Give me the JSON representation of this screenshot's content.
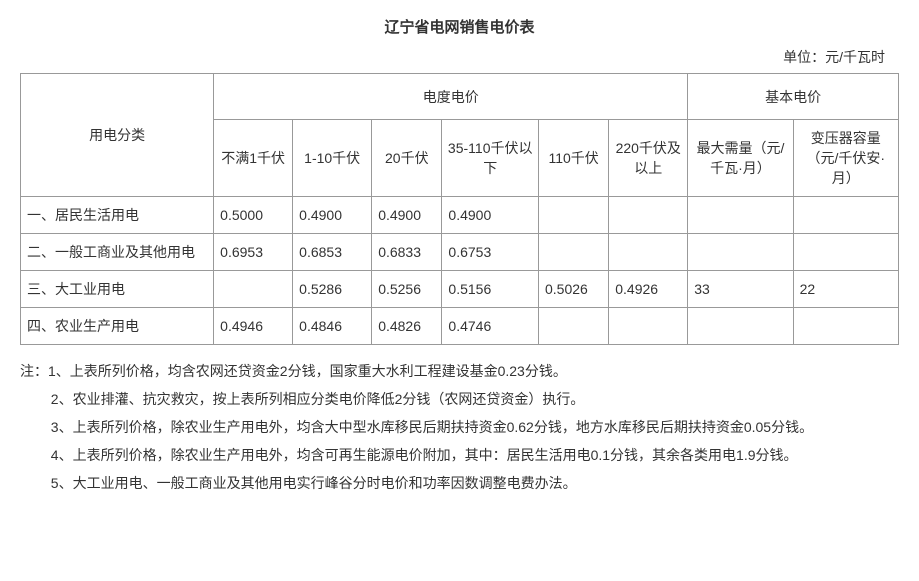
{
  "title": "辽宁省电网销售电价表",
  "unit_label": "单位：元/千瓦时",
  "header": {
    "category": "用电分类",
    "meter_group": "电度电价",
    "basic_group": "基本电价",
    "cols": {
      "c1": "不满1千伏",
      "c2": "1-10千伏",
      "c3": "20千伏",
      "c4": "35-110千伏以下",
      "c5": "110千伏",
      "c6": "220千伏及以上",
      "b1": "最大需量（元/千瓦·月）",
      "b2": "变压器容量（元/千伏安·月）"
    }
  },
  "rows": [
    {
      "cat": "一、居民生活用电",
      "c1": "0.5000",
      "c2": "0.4900",
      "c3": "0.4900",
      "c4": "0.4900",
      "c5": "",
      "c6": "",
      "b1": "",
      "b2": ""
    },
    {
      "cat": "二、一般工商业及其他用电",
      "c1": "0.6953",
      "c2": "0.6853",
      "c3": "0.6833",
      "c4": "0.6753",
      "c5": "",
      "c6": "",
      "b1": "",
      "b2": ""
    },
    {
      "cat": "三、大工业用电",
      "c1": "",
      "c2": "0.5286",
      "c3": "0.5256",
      "c4": "0.5156",
      "c5": "0.5026",
      "c6": "0.4926",
      "b1": "33",
      "b2": "22"
    },
    {
      "cat": "四、农业生产用电",
      "c1": "0.4946",
      "c2": "0.4846",
      "c3": "0.4826",
      "c4": "0.4746",
      "c5": "",
      "c6": "",
      "b1": "",
      "b2": ""
    }
  ],
  "notes_prefix": "注：",
  "notes": [
    "1、上表所列价格，均含农网还贷资金2分钱，国家重大水利工程建设基金0.23分钱。",
    "2、农业排灌、抗灾救灾，按上表所列相应分类电价降低2分钱（农网还贷资金）执行。",
    "3、上表所列价格，除农业生产用电外，均含大中型水库移民后期扶持资金0.62分钱，地方水库移民后期扶持资金0.05分钱。",
    "4、上表所列价格，除农业生产用电外，均含可再生能源电价附加，其中：居民生活用电0.1分钱，其余各类用电1.9分钱。",
    "5、大工业用电、一般工商业及其他用电实行峰谷分时电价和功率因数调整电费办法。"
  ],
  "col_widths": {
    "category": "22%",
    "c1": "9%",
    "c2": "9%",
    "c3": "8%",
    "c4": "11%",
    "c5": "8%",
    "c6": "9%",
    "b1": "12%",
    "b2": "12%"
  }
}
